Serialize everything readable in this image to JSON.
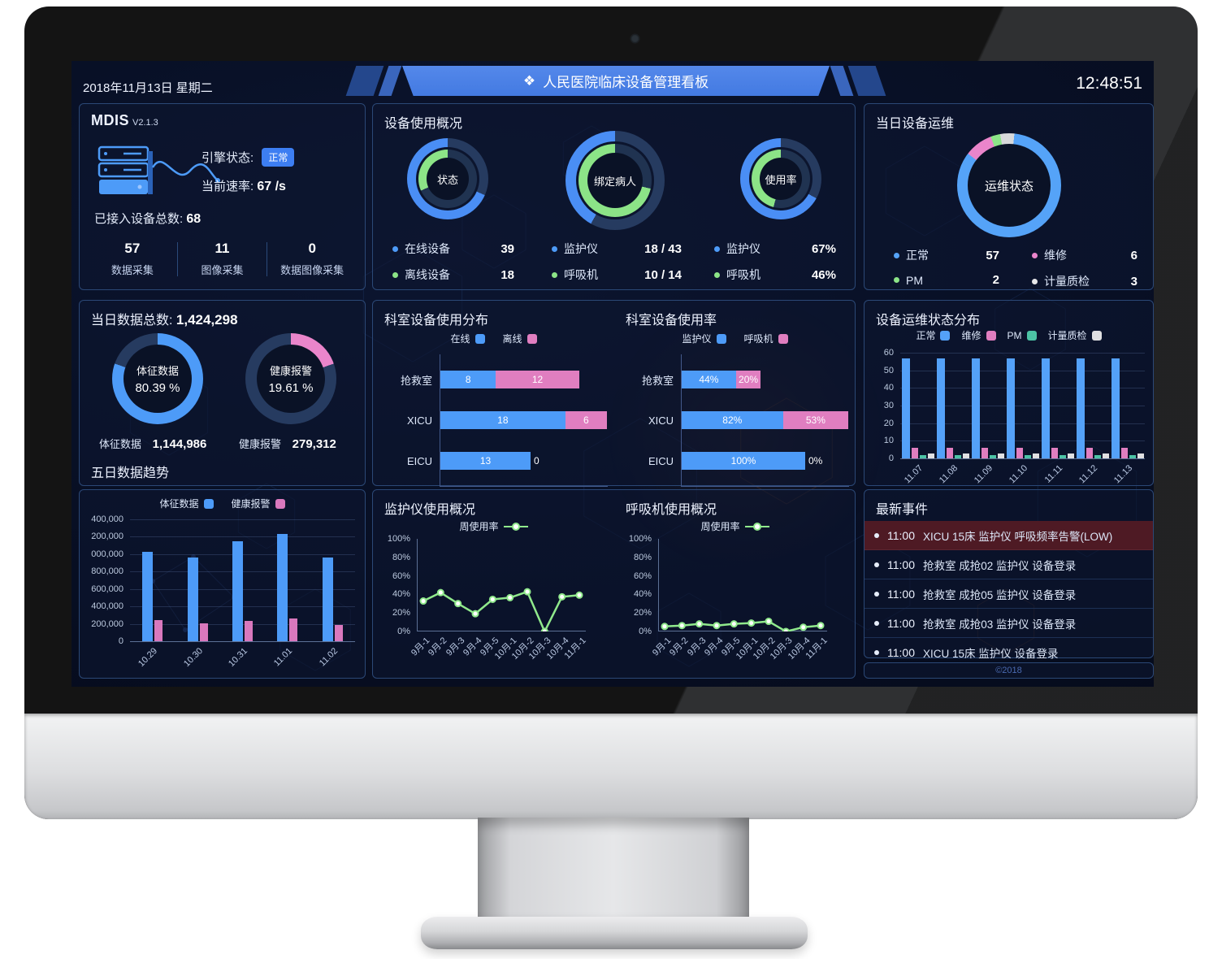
{
  "header": {
    "date": "2018年11月13日 星期二",
    "title": "人民医院临床设备管理看板",
    "title_icon": "❖",
    "time": "12:48:51"
  },
  "colors": {
    "blue": "#4d9bf8",
    "green": "#8ce487",
    "pink": "#e07ec0",
    "teal": "#4cc3a5",
    "white_seg": "#d8d9db",
    "alert_row_bg": "#4e1a24",
    "badge_blue": "#3d7ef2",
    "ring_rest_outer": "#263b60",
    "ring_rest_inner": "#203351"
  },
  "mdis": {
    "title": "MDIS",
    "version": "V2.1.3",
    "engine_label": "引擎状态:",
    "engine_status": "正常",
    "rate_label": "当前速率:",
    "rate_value": "67 /s",
    "total_label": "已接入设备总数:",
    "total_value": "68",
    "stats": [
      {
        "value": "57",
        "label": "数据采集"
      },
      {
        "value": "11",
        "label": "图像采集"
      },
      {
        "value": "0",
        "label": "数据图像采集"
      }
    ]
  },
  "today_data": {
    "title": "当日数据总数:",
    "total": "1,424,298",
    "donuts": [
      {
        "label": "体征数据",
        "pct": "80.39 %"
      },
      {
        "label": "健康报警",
        "pct": "19.61 %"
      }
    ],
    "values": [
      {
        "label": "体征数据",
        "value": "1,144,986"
      },
      {
        "label": "健康报警",
        "value": "279,312"
      }
    ]
  },
  "device_overview": {
    "title": "设备使用概况",
    "donuts": [
      {
        "center": "状态",
        "legend": [
          {
            "label": "在线设备",
            "value": "39",
            "color": "#4d9bf8"
          },
          {
            "label": "离线设备",
            "value": "18",
            "color": "#8ce487"
          }
        ]
      },
      {
        "center": "绑定病人",
        "legend": [
          {
            "label": "监护仪",
            "value": "18 / 43",
            "color": "#4d9bf8"
          },
          {
            "label": "呼吸机",
            "value": "10 / 14",
            "color": "#8ce487"
          }
        ]
      },
      {
        "center": "使用率",
        "legend": [
          {
            "label": "监护仪",
            "value": "67%",
            "color": "#4d9bf8"
          },
          {
            "label": "呼吸机",
            "value": "46%",
            "color": "#8ce487"
          }
        ]
      }
    ]
  },
  "ops_today": {
    "title": "当日设备运维",
    "center": "运维状态",
    "legend": [
      {
        "label": "正常",
        "value": "57",
        "color": "#55a3f8"
      },
      {
        "label": "维修",
        "value": "6",
        "color": "#ea85cb"
      },
      {
        "label": "PM",
        "value": "2",
        "color": "#8ce487"
      },
      {
        "label": "计量质检",
        "value": "3",
        "color": "#e8e8ea"
      }
    ]
  },
  "events": {
    "title": "最新事件",
    "items": [
      {
        "time": "11:00",
        "text": "XICU 15床 监护仪 呼吸频率告警(LOW)",
        "alert": true
      },
      {
        "time": "11:00",
        "text": "抢救室 成抢02 监护仪 设备登录",
        "alert": false
      },
      {
        "time": "11:00",
        "text": "抢救室 成抢05 监护仪 设备登录",
        "alert": false
      },
      {
        "time": "11:00",
        "text": "抢救室 成抢03 监护仪 设备登录",
        "alert": false
      },
      {
        "time": "11:00",
        "text": "XICU 15床 监护仪 设备登录",
        "alert": false
      }
    ],
    "footer": "©2018"
  },
  "rings": {
    "status_outer": {
      "from": 0,
      "segments": [
        {
          "color": "#263b60",
          "value": 31.6
        },
        {
          "color": "#4a8ef5",
          "value": 68.4
        }
      ]
    },
    "status_inner": {
      "from": 0,
      "segments": [
        {
          "color": "#203351",
          "value": 68.4
        },
        {
          "color": "#8ce487",
          "value": 31.6
        }
      ]
    },
    "bind_outer": {
      "from": 0,
      "segments": [
        {
          "color": "#263b60",
          "value": 58.1
        },
        {
          "color": "#4a8ef5",
          "value": 41.9
        }
      ]
    },
    "bind_inner": {
      "from": 0,
      "segments": [
        {
          "color": "#203351",
          "value": 28.6
        },
        {
          "color": "#8ce487",
          "value": 71.4
        }
      ]
    },
    "usage_outer": {
      "from": 0,
      "segments": [
        {
          "color": "#263b60",
          "value": 33.0
        },
        {
          "color": "#4a8ef5",
          "value": 67.0
        }
      ]
    },
    "usage_inner": {
      "from": 0,
      "segments": [
        {
          "color": "#203351",
          "value": 54.0
        },
        {
          "color": "#8ce487",
          "value": 46.0
        }
      ]
    },
    "vital": {
      "from": 0,
      "segments": [
        {
          "color": "#4d9bf8",
          "value": 80.39
        },
        {
          "color": "#263b60",
          "value": 19.61
        }
      ]
    },
    "alarm": {
      "from": 0,
      "segments": [
        {
          "color": "#ea85cb",
          "value": 19.61
        },
        {
          "color": "#263b60",
          "value": 80.39
        }
      ]
    },
    "ops": {
      "from": -10,
      "segments": [
        {
          "color": "#d8d9db",
          "value": 4.4
        },
        {
          "color": "#55a3f8",
          "value": 83.8
        },
        {
          "color": "#ea85cb",
          "value": 8.8
        },
        {
          "color": "#8ce487",
          "value": 3.0
        }
      ]
    }
  },
  "chart_data": [
    {
      "id": "trend5",
      "type": "bar",
      "title": "五日数据趋势",
      "categories": [
        "10.29",
        "10.30",
        "10.31",
        "11.01",
        "11.02"
      ],
      "series": [
        {
          "name": "体征数据",
          "color": "#4d9bf8",
          "values": [
            1030000,
            960000,
            1150000,
            1230000,
            960000
          ]
        },
        {
          "name": "健康报警",
          "color": "#d978bd",
          "values": [
            240000,
            205000,
            235000,
            260000,
            185000
          ]
        }
      ],
      "ylim": [
        0,
        1400000
      ],
      "yticks": [
        "400,000",
        "200,000",
        "000,000",
        "800,000",
        "600,000",
        "400,000",
        "200,000",
        "0"
      ],
      "grid": true,
      "legend_position": "top"
    },
    {
      "id": "dept_dist",
      "type": "hbar-stacked",
      "title": "科室设备使用分布",
      "categories": [
        "抢救室",
        "XICU",
        "EICU"
      ],
      "series": [
        {
          "name": "在线",
          "color": "#4d9bf8",
          "values": [
            8,
            18,
            13
          ]
        },
        {
          "name": "离线",
          "color": "#e07ec0",
          "values": [
            12,
            6,
            0
          ]
        }
      ],
      "xmax": 24,
      "unit": ""
    },
    {
      "id": "dept_rate",
      "type": "hbar-stacked",
      "title": "科室设备使用率",
      "categories": [
        "抢救室",
        "XICU",
        "EICU"
      ],
      "series": [
        {
          "name": "监护仪",
          "color": "#4d9bf8",
          "values": [
            44,
            82,
            100
          ]
        },
        {
          "name": "呼吸机",
          "color": "#e07ec0",
          "values": [
            20,
            53,
            0
          ]
        }
      ],
      "xmax": 135,
      "unit": "%"
    },
    {
      "id": "monitor_usage",
      "type": "line",
      "title": "监护仪使用概况",
      "legend": "周使用率",
      "color": "#90e98c",
      "x": [
        "9月-1",
        "9月-2",
        "9月-3",
        "9月-4",
        "9月-5",
        "10月-1",
        "10月-2",
        "10月-3",
        "10月-4",
        "11月-1"
      ],
      "values": [
        36,
        46,
        33,
        21,
        38,
        40,
        47,
        0,
        41,
        43
      ],
      "ylim": [
        0,
        100
      ],
      "yticks": [
        "100%",
        "80%",
        "60%",
        "40%",
        "20%",
        "0%"
      ],
      "grid": false
    },
    {
      "id": "vent_usage",
      "type": "line",
      "title": "呼吸机使用概况",
      "legend": "周使用率",
      "color": "#90e98c",
      "x": [
        "9月-1",
        "9月-2",
        "9月-3",
        "9月-4",
        "9月-5",
        "10月-1",
        "10月-2",
        "10月-3",
        "10月-4",
        "11月-1"
      ],
      "values": [
        6,
        7,
        9,
        7,
        9,
        10,
        12,
        0,
        5,
        7
      ],
      "ylim": [
        0,
        100
      ],
      "yticks": [
        "100%",
        "80%",
        "60%",
        "40%",
        "20%",
        "0%"
      ],
      "grid": false
    },
    {
      "id": "ops_dist",
      "type": "bar",
      "title": "设备运维状态分布",
      "categories": [
        "11.07",
        "11.08",
        "11.09",
        "11.10",
        "11.11",
        "11.12",
        "11.13"
      ],
      "series": [
        {
          "name": "正常",
          "color": "#54a1f8",
          "values": [
            57,
            57,
            57,
            57,
            57,
            57,
            57
          ]
        },
        {
          "name": "维修",
          "color": "#e07ec0",
          "values": [
            6,
            6,
            6,
            6,
            6,
            6,
            6
          ]
        },
        {
          "name": "PM",
          "color": "#4cc3a5",
          "values": [
            2,
            2,
            2,
            2,
            2,
            2,
            2
          ]
        },
        {
          "name": "计量质检",
          "color": "#e0e0e2",
          "values": [
            3,
            3,
            3,
            3,
            3,
            3,
            3
          ]
        }
      ],
      "ylim": [
        0,
        60
      ],
      "yticks": [
        "60",
        "50",
        "40",
        "30",
        "20",
        "10",
        "0"
      ],
      "grid": true,
      "legend_position": "top"
    }
  ]
}
